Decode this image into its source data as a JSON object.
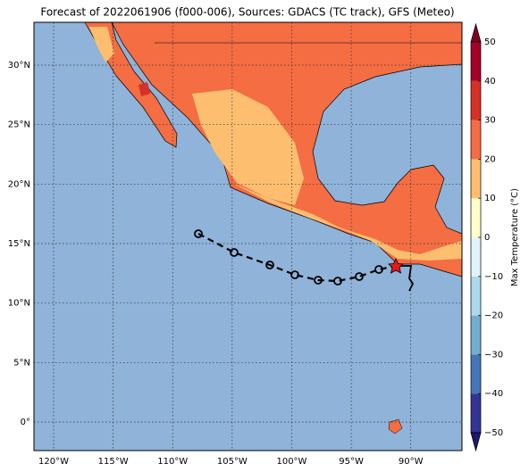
{
  "title": "Forecast of 2022061906 (f000-006), Sources: GDACS (TC track), GFS (Meteo)",
  "map": {
    "lonlim": [
      -121.65,
      -85.7
    ],
    "latlim": [
      -2.4,
      33.6
    ],
    "lon_ticks": [
      {
        "value": -120,
        "label": "120°W"
      },
      {
        "value": -115,
        "label": "115°W"
      },
      {
        "value": -110,
        "label": "110°W"
      },
      {
        "value": -105,
        "label": "105°W"
      },
      {
        "value": -100,
        "label": "100°W"
      },
      {
        "value": -95,
        "label": "95°W"
      },
      {
        "value": -90,
        "label": "90°W"
      }
    ],
    "lat_ticks": [
      {
        "value": 0,
        "label": "0°"
      },
      {
        "value": 5,
        "label": "5°N"
      },
      {
        "value": 10,
        "label": "10°N"
      },
      {
        "value": 15,
        "label": "15°N"
      },
      {
        "value": 20,
        "label": "20°N"
      },
      {
        "value": 25,
        "label": "25°N"
      },
      {
        "value": 30,
        "label": "30°N"
      }
    ],
    "grid": true
  },
  "colorbar": {
    "label": "Max Temperature (°C)",
    "lim": [
      -50,
      50
    ],
    "ticks": [
      {
        "value": -50,
        "label": "−50"
      },
      {
        "value": -40,
        "label": "−40"
      },
      {
        "value": -30,
        "label": "−30"
      },
      {
        "value": -20,
        "label": "−20"
      },
      {
        "value": -10,
        "label": "−10"
      },
      0,
      10,
      20,
      30,
      40,
      50
    ],
    "colors": [
      "#313695",
      "#4575b4",
      "#74add1",
      "#abd9e9",
      "#e0f3f8",
      "#ffffcc",
      "#fdbf6f",
      "#f46d43",
      "#d73027",
      "#a50026"
    ],
    "under_color": "#1a1a6e",
    "over_color": "#7f0020"
  }
}
